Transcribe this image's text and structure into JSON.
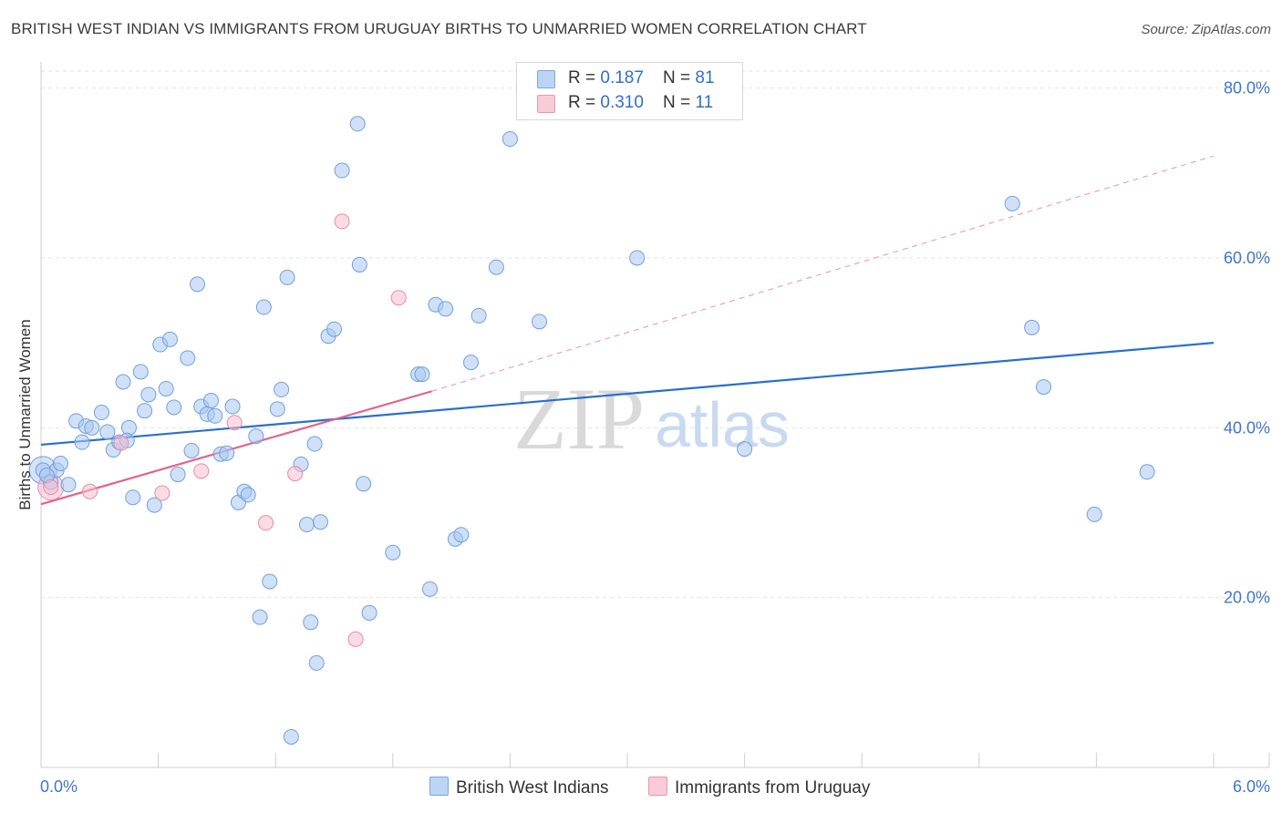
{
  "header": {
    "title": "BRITISH WEST INDIAN VS IMMIGRANTS FROM URUGUAY BIRTHS TO UNMARRIED WOMEN CORRELATION CHART",
    "source": "Source: ZipAtlas.com"
  },
  "legend": {
    "rows": [
      {
        "r_label": "R = ",
        "r_value": "0.187",
        "n_label": "N = ",
        "n_value": "81"
      },
      {
        "r_label": "R = ",
        "r_value": "0.310",
        "n_label": "N = ",
        "n_value": "11"
      }
    ],
    "series_names": [
      "British West Indians",
      "Immigrants from Uruguay"
    ]
  },
  "colors": {
    "blue_fill": "#a9c8f0",
    "blue_stroke": "#6f9fe0",
    "blue_line": "#2a6fd0",
    "pink_fill": "#f7bfd0",
    "pink_stroke": "#e98aa8",
    "pink_line": "#e2628c",
    "grid": "#e2e2e2",
    "tick_text": "#3f76cc",
    "watermark": "#d6d6d6"
  },
  "watermark": {
    "zip": "ZIP",
    "atlas": "atlas"
  },
  "chart_data": {
    "type": "scatter",
    "title": "BRITISH WEST INDIAN VS IMMIGRANTS FROM URUGUAY BIRTHS TO UNMARRIED WOMEN CORRELATION CHART",
    "xlabel": "",
    "ylabel": "Births to Unmarried Women",
    "xlim": [
      0,
      6
    ],
    "ylim": [
      0,
      82
    ],
    "x_tick_labels": [
      "0.0%",
      "6.0%"
    ],
    "y_ticks": [
      20,
      40,
      60,
      80
    ],
    "y_tick_labels": [
      "20.0%",
      "40.0%",
      "60.0%",
      "80.0%"
    ],
    "grid": true,
    "series": [
      {
        "name": "British West Indians",
        "R": 0.187,
        "N": 81,
        "trend": {
          "x": [
            0,
            6
          ],
          "y": [
            38.0,
            50.0
          ],
          "style": "solid"
        },
        "points": [
          [
            0.01,
            35.0
          ],
          [
            0.05,
            33.6
          ],
          [
            0.08,
            35.0
          ],
          [
            0.1,
            35.8
          ],
          [
            0.14,
            33.3
          ],
          [
            0.18,
            40.8
          ],
          [
            0.21,
            38.3
          ],
          [
            0.23,
            40.2
          ],
          [
            0.26,
            40.0
          ],
          [
            0.31,
            41.8
          ],
          [
            0.34,
            39.5
          ],
          [
            0.37,
            37.4
          ],
          [
            0.4,
            38.3
          ],
          [
            0.42,
            45.4
          ],
          [
            0.45,
            40.0
          ],
          [
            0.47,
            31.8
          ],
          [
            0.51,
            46.6
          ],
          [
            0.53,
            42.0
          ],
          [
            0.55,
            43.9
          ],
          [
            0.58,
            30.9
          ],
          [
            0.61,
            49.8
          ],
          [
            0.64,
            44.6
          ],
          [
            0.66,
            50.4
          ],
          [
            0.68,
            42.4
          ],
          [
            0.7,
            34.5
          ],
          [
            0.75,
            48.2
          ],
          [
            0.77,
            37.3
          ],
          [
            0.8,
            56.9
          ],
          [
            0.82,
            42.5
          ],
          [
            0.85,
            41.6
          ],
          [
            0.87,
            43.2
          ],
          [
            0.89,
            41.4
          ],
          [
            0.92,
            36.9
          ],
          [
            0.95,
            37.0
          ],
          [
            0.98,
            42.5
          ],
          [
            1.01,
            31.2
          ],
          [
            1.04,
            32.5
          ],
          [
            1.06,
            32.1
          ],
          [
            1.1,
            39.0
          ],
          [
            1.12,
            17.7
          ],
          [
            1.14,
            54.2
          ],
          [
            1.17,
            21.9
          ],
          [
            1.21,
            42.2
          ],
          [
            1.23,
            44.5
          ],
          [
            1.26,
            57.7
          ],
          [
            1.28,
            3.6
          ],
          [
            1.33,
            35.7
          ],
          [
            1.36,
            28.6
          ],
          [
            1.38,
            17.1
          ],
          [
            1.4,
            38.1
          ],
          [
            1.41,
            12.3
          ],
          [
            1.43,
            28.9
          ],
          [
            1.47,
            50.8
          ],
          [
            1.5,
            51.6
          ],
          [
            1.54,
            70.3
          ],
          [
            1.62,
            75.8
          ],
          [
            1.63,
            59.2
          ],
          [
            1.65,
            33.4
          ],
          [
            1.68,
            18.2
          ],
          [
            1.8,
            25.3
          ],
          [
            1.93,
            46.3
          ],
          [
            1.95,
            46.3
          ],
          [
            1.99,
            21.0
          ],
          [
            2.02,
            54.5
          ],
          [
            2.07,
            54.0
          ],
          [
            2.12,
            26.9
          ],
          [
            2.15,
            27.4
          ],
          [
            2.2,
            47.7
          ],
          [
            2.24,
            53.2
          ],
          [
            2.33,
            58.9
          ],
          [
            2.4,
            74.0
          ],
          [
            2.55,
            52.5
          ],
          [
            3.05,
            60.0
          ],
          [
            3.6,
            37.5
          ],
          [
            4.97,
            66.4
          ],
          [
            5.07,
            51.8
          ],
          [
            5.13,
            44.8
          ],
          [
            5.39,
            29.8
          ],
          [
            5.66,
            34.8
          ],
          [
            0.03,
            34.4
          ],
          [
            0.44,
            38.5
          ]
        ]
      },
      {
        "name": "Immigrants from Uruguay",
        "R": 0.31,
        "N": 11,
        "trend": {
          "x": [
            0,
            2.0
          ],
          "y": [
            31.0,
            44.3
          ],
          "style": "solid",
          "extension": {
            "x": [
              2.0,
              6.0
            ],
            "y": [
              44.3,
              72.0
            ],
            "style": "dashed"
          }
        },
        "points": [
          [
            0.05,
            33.0
          ],
          [
            0.25,
            32.5
          ],
          [
            0.41,
            38.2
          ],
          [
            0.62,
            32.3
          ],
          [
            0.82,
            34.9
          ],
          [
            0.99,
            40.6
          ],
          [
            1.15,
            28.8
          ],
          [
            1.3,
            34.6
          ],
          [
            1.54,
            64.3
          ],
          [
            1.61,
            15.1
          ],
          [
            1.83,
            55.3
          ]
        ]
      }
    ]
  }
}
